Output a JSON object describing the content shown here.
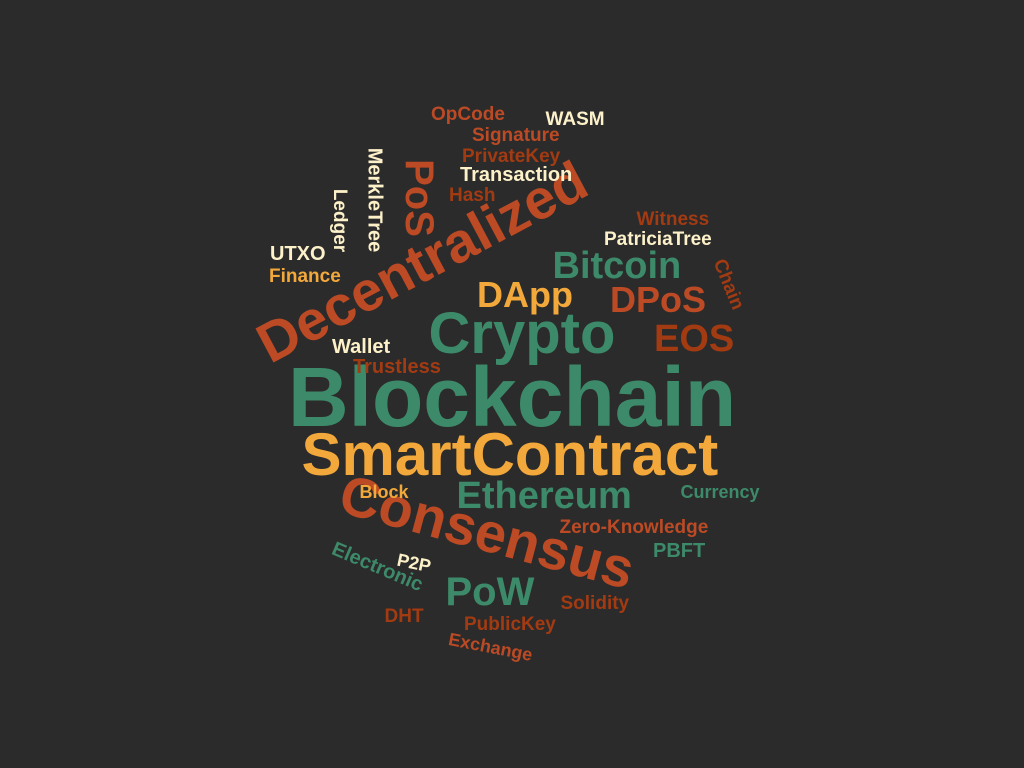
{
  "background": "#2b2b2b",
  "palette": {
    "green": "#3d8a6a",
    "orange": "#f2a83a",
    "red": "#bc4a24",
    "darkred": "#a23a12",
    "cream": "#fdf1c9"
  },
  "words": [
    {
      "text": "Blockchain",
      "color": "green"
    },
    {
      "text": "SmartContract",
      "color": "orange"
    },
    {
      "text": "Decentralized",
      "color": "red"
    },
    {
      "text": "Consensus",
      "color": "red"
    },
    {
      "text": "Crypto",
      "color": "green"
    },
    {
      "text": "Ethereum",
      "color": "green"
    },
    {
      "text": "Bitcoin",
      "color": "green"
    },
    {
      "text": "DApp",
      "color": "orange"
    },
    {
      "text": "DPoS",
      "color": "red"
    },
    {
      "text": "EOS",
      "color": "darkred"
    },
    {
      "text": "PoW",
      "color": "green"
    },
    {
      "text": "PoS",
      "color": "red"
    },
    {
      "text": "Wallet",
      "color": "cream"
    },
    {
      "text": "Trustless",
      "color": "darkred"
    },
    {
      "text": "Block",
      "color": "orange"
    },
    {
      "text": "Currency",
      "color": "green"
    },
    {
      "text": "Zero-Knowledge",
      "color": "red"
    },
    {
      "text": "PBFT",
      "color": "green"
    },
    {
      "text": "Electronic",
      "color": "green"
    },
    {
      "text": "P2P",
      "color": "cream"
    },
    {
      "text": "Solidity",
      "color": "darkred"
    },
    {
      "text": "DHT",
      "color": "darkred"
    },
    {
      "text": "PublicKey",
      "color": "darkred"
    },
    {
      "text": "Exchange",
      "color": "red"
    },
    {
      "text": "UTXO",
      "color": "cream"
    },
    {
      "text": "Finance",
      "color": "orange"
    },
    {
      "text": "Ledger",
      "color": "cream"
    },
    {
      "text": "MerkleTree",
      "color": "cream"
    },
    {
      "text": "OpCode",
      "color": "red"
    },
    {
      "text": "WASM",
      "color": "cream"
    },
    {
      "text": "Signature",
      "color": "red"
    },
    {
      "text": "PrivateKey",
      "color": "darkred"
    },
    {
      "text": "Transaction",
      "color": "cream"
    },
    {
      "text": "Hash",
      "color": "darkred"
    },
    {
      "text": "Witness",
      "color": "darkred"
    },
    {
      "text": "PatriciaTree",
      "color": "cream"
    },
    {
      "text": "Chain",
      "color": "darkred"
    }
  ]
}
